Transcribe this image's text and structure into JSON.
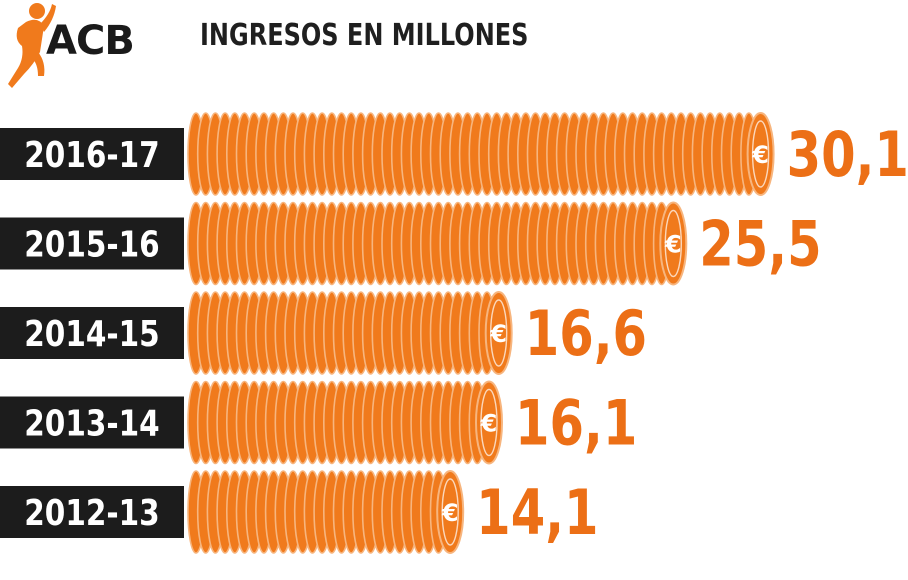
{
  "header": {
    "logo_text": "ACB",
    "title": "INGRESOS EN MILLONES"
  },
  "colors": {
    "coin_fill": "#f07a1c",
    "coin_edge": "#f7b57e",
    "label_bg": "#1c1c1c",
    "value_text": "#ec6f16",
    "logo_orange": "#f07a1c"
  },
  "chart_data": {
    "type": "bar",
    "orientation": "horizontal",
    "title": "INGRESOS EN MILLONES",
    "categories": [
      "2016-17",
      "2015-16",
      "2014-15",
      "2013-14",
      "2012-13"
    ],
    "values": [
      30.1,
      25.5,
      16.6,
      16.1,
      14.1
    ],
    "value_labels": [
      "30,1",
      "25,5",
      "16,6",
      "16,1",
      "14,1"
    ],
    "coin_symbol": "€",
    "xlim": [
      0,
      30.1
    ],
    "grid": false,
    "legend": "none"
  }
}
